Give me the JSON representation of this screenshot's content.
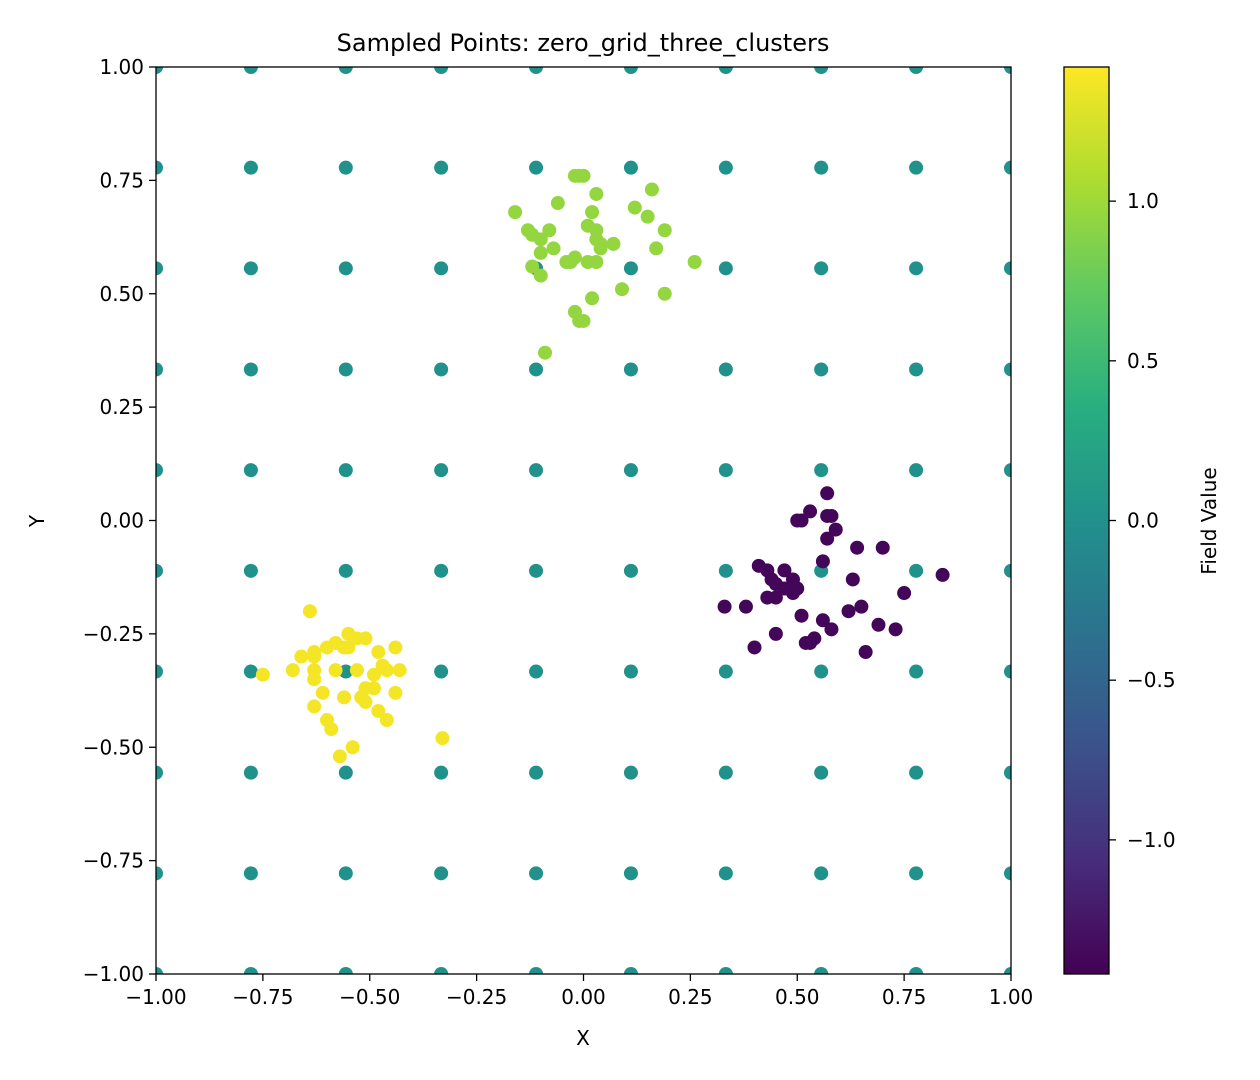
{
  "chart_data": {
    "type": "scatter",
    "title": "Sampled Points: zero_grid_three_clusters",
    "xlabel": "X",
    "ylabel": "Y",
    "xlim": [
      -1.0,
      1.0
    ],
    "ylim": [
      -1.0,
      1.0
    ],
    "x_ticks": [
      "−1.00",
      "−0.75",
      "−0.50",
      "−0.25",
      "0.00",
      "0.25",
      "0.50",
      "0.75",
      "1.00"
    ],
    "y_ticks": [
      "−1.00",
      "−0.75",
      "−0.50",
      "−0.25",
      "0.00",
      "0.25",
      "0.50",
      "0.75",
      "1.00"
    ],
    "grid": false,
    "colormap": "viridis",
    "colorbar": {
      "label": "Field Value",
      "range": [
        -1.42,
        1.42
      ],
      "ticks": [
        "−1.0",
        "−0.5",
        "0.0",
        "0.5",
        "1.0"
      ]
    },
    "series": [
      {
        "grid_axis_values": [
          -1.0,
          -0.778,
          -0.556,
          -0.333,
          -0.111,
          0.111,
          0.333,
          0.556,
          0.778,
          1.0
        ],
        "value": 0.0
      },
      {
        "value": 0.95,
        "points": [
          [
            -0.16,
            0.68
          ],
          [
            -0.13,
            0.64
          ],
          [
            -0.12,
            0.63
          ],
          [
            -0.1,
            0.62
          ],
          [
            -0.08,
            0.64
          ],
          [
            -0.07,
            0.6
          ],
          [
            -0.12,
            0.56
          ],
          [
            -0.1,
            0.59
          ],
          [
            -0.1,
            0.54
          ],
          [
            -0.06,
            0.7
          ],
          [
            -0.04,
            0.57
          ],
          [
            -0.03,
            0.57
          ],
          [
            -0.02,
            0.58
          ],
          [
            -0.02,
            0.76
          ],
          [
            0.0,
            0.76
          ],
          [
            -0.01,
            0.76
          ],
          [
            0.03,
            0.72
          ],
          [
            0.02,
            0.68
          ],
          [
            0.03,
            0.64
          ],
          [
            0.04,
            0.61
          ],
          [
            0.04,
            0.6
          ],
          [
            0.03,
            0.62
          ],
          [
            0.01,
            0.65
          ],
          [
            0.01,
            0.57
          ],
          [
            0.03,
            0.57
          ],
          [
            0.07,
            0.61
          ],
          [
            0.12,
            0.69
          ],
          [
            0.15,
            0.67
          ],
          [
            0.16,
            0.73
          ],
          [
            0.17,
            0.6
          ],
          [
            0.19,
            0.64
          ],
          [
            0.26,
            0.57
          ],
          [
            0.09,
            0.51
          ],
          [
            0.19,
            0.5
          ],
          [
            0.02,
            0.49
          ],
          [
            -0.02,
            0.46
          ],
          [
            -0.01,
            0.44
          ],
          [
            0.0,
            0.44
          ],
          [
            -0.09,
            0.37
          ]
        ]
      },
      {
        "value": 1.38,
        "points": [
          [
            -0.64,
            -0.2
          ],
          [
            -0.66,
            -0.3
          ],
          [
            -0.63,
            -0.29
          ],
          [
            -0.63,
            -0.3
          ],
          [
            -0.63,
            -0.33
          ],
          [
            -0.68,
            -0.33
          ],
          [
            -0.75,
            -0.34
          ],
          [
            -0.63,
            -0.35
          ],
          [
            -0.6,
            -0.28
          ],
          [
            -0.58,
            -0.27
          ],
          [
            -0.55,
            -0.25
          ],
          [
            -0.53,
            -0.26
          ],
          [
            -0.51,
            -0.26
          ],
          [
            -0.56,
            -0.28
          ],
          [
            -0.55,
            -0.28
          ],
          [
            -0.58,
            -0.33
          ],
          [
            -0.53,
            -0.33
          ],
          [
            -0.49,
            -0.34
          ],
          [
            -0.47,
            -0.32
          ],
          [
            -0.46,
            -0.33
          ],
          [
            -0.43,
            -0.33
          ],
          [
            -0.44,
            -0.28
          ],
          [
            -0.48,
            -0.29
          ],
          [
            -0.61,
            -0.38
          ],
          [
            -0.56,
            -0.39
          ],
          [
            -0.51,
            -0.37
          ],
          [
            -0.52,
            -0.39
          ],
          [
            -0.51,
            -0.4
          ],
          [
            -0.49,
            -0.37
          ],
          [
            -0.44,
            -0.38
          ],
          [
            -0.63,
            -0.41
          ],
          [
            -0.6,
            -0.44
          ],
          [
            -0.59,
            -0.46
          ],
          [
            -0.48,
            -0.42
          ],
          [
            -0.46,
            -0.44
          ],
          [
            -0.54,
            -0.5
          ],
          [
            -0.57,
            -0.52
          ],
          [
            -0.33,
            -0.48
          ]
        ]
      },
      {
        "value": -1.38,
        "points": [
          [
            0.57,
            0.06
          ],
          [
            0.53,
            0.02
          ],
          [
            0.5,
            0.0
          ],
          [
            0.51,
            0.0
          ],
          [
            0.57,
            0.01
          ],
          [
            0.58,
            0.01
          ],
          [
            0.59,
            -0.02
          ],
          [
            0.57,
            -0.04
          ],
          [
            0.56,
            -0.09
          ],
          [
            0.64,
            -0.06
          ],
          [
            0.7,
            -0.06
          ],
          [
            0.41,
            -0.1
          ],
          [
            0.43,
            -0.11
          ],
          [
            0.47,
            -0.11
          ],
          [
            0.44,
            -0.13
          ],
          [
            0.45,
            -0.14
          ],
          [
            0.49,
            -0.13
          ],
          [
            0.47,
            -0.15
          ],
          [
            0.49,
            -0.16
          ],
          [
            0.43,
            -0.17
          ],
          [
            0.45,
            -0.17
          ],
          [
            0.5,
            -0.15
          ],
          [
            0.33,
            -0.19
          ],
          [
            0.38,
            -0.19
          ],
          [
            0.51,
            -0.21
          ],
          [
            0.56,
            -0.22
          ],
          [
            0.58,
            -0.24
          ],
          [
            0.62,
            -0.2
          ],
          [
            0.65,
            -0.19
          ],
          [
            0.63,
            -0.13
          ],
          [
            0.75,
            -0.16
          ],
          [
            0.84,
            -0.12
          ],
          [
            0.69,
            -0.23
          ],
          [
            0.73,
            -0.24
          ],
          [
            0.54,
            -0.26
          ],
          [
            0.53,
            -0.27
          ],
          [
            0.52,
            -0.27
          ],
          [
            0.45,
            -0.25
          ],
          [
            0.4,
            -0.28
          ],
          [
            0.66,
            -0.29
          ]
        ]
      }
    ]
  }
}
